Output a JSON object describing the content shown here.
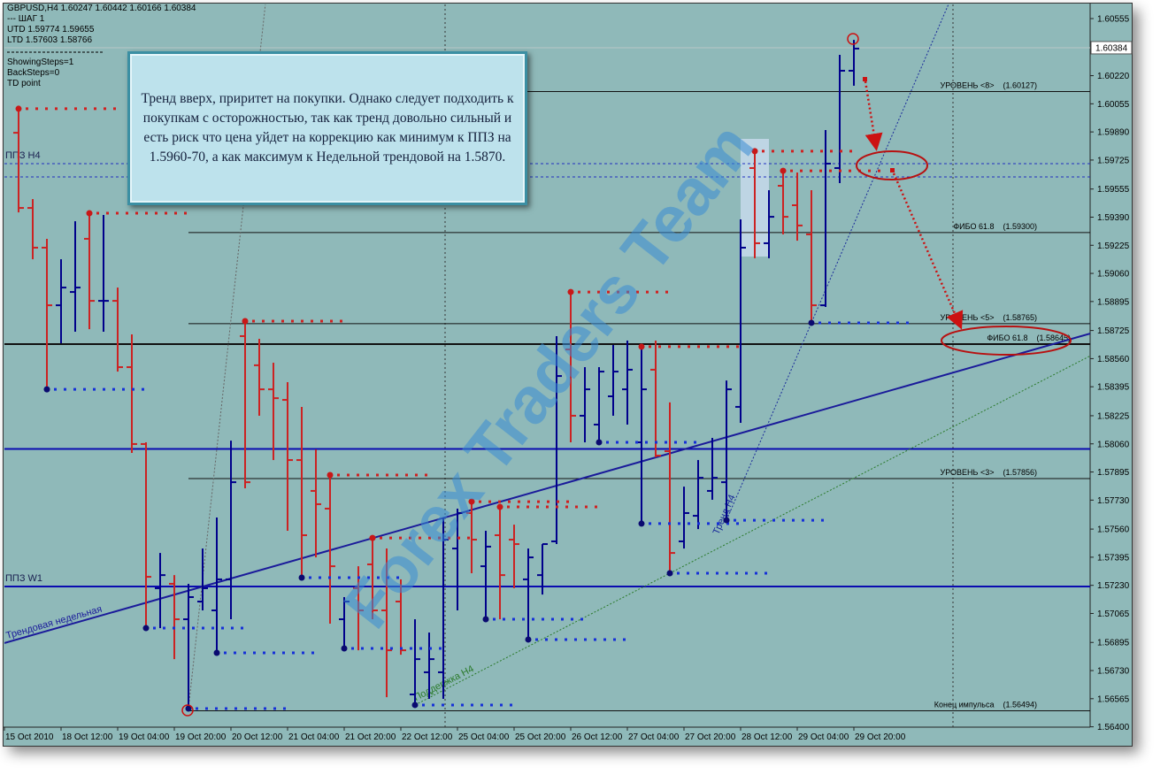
{
  "chart_data": {
    "type": "ohlc",
    "info_lines": [
      "GBPUSD,H4  1.60247 1.60442 1.60166 1.60384",
      "---  ШАГ 1",
      "UTD 1.59774  1.59655",
      "LTD 1.57603  1.58766"
    ],
    "settings_lines": [
      "ShowingSteps=1",
      "BackSteps=0",
      "TD point"
    ],
    "note": "Тренд вверх, приритет на покупки. Однако следует подходить к покупкам с осторожностью, так как тренд довольно сильный и есть риск что цена уйдет на коррекцию как минимум к ППЗ на 1.5960-70, а как максимум к Недельной трендовой на 1.5870.",
    "watermark": "Forex Traders Team",
    "categories": [
      "15 Oct 2010",
      null,
      null,
      null,
      "18 Oct 12:00",
      null,
      null,
      null,
      "19 Oct 04:00",
      null,
      null,
      null,
      "19 Oct 20:00",
      null,
      null,
      null,
      "20 Oct 12:00",
      null,
      null,
      null,
      "21 Oct 04:00",
      null,
      null,
      null,
      "21 Oct 20:00",
      null,
      null,
      null,
      "22 Oct 12:00",
      null,
      null,
      null,
      "25 Oct 04:00",
      null,
      null,
      null,
      "25 Oct 20:00",
      null,
      null,
      null,
      "26 Oct 12:00",
      null,
      null,
      null,
      "27 Oct 04:00",
      null,
      null,
      null,
      "27 Oct 20:00",
      null,
      null,
      null,
      "28 Oct 12:00",
      null,
      null,
      null,
      "29 Oct 04:00",
      null,
      null,
      null,
      "29 Oct 20:00"
    ],
    "open": [
      null,
      1.59885,
      1.59444,
      1.59211,
      1.58873,
      1.58951,
      1.59263,
      1.58899,
      1.58899,
      1.5851,
      1.58059,
      1.57213,
      1.57239,
      1.57031,
      1.57135,
      1.57083,
      1.57265,
      1.58692,
      1.58521,
      1.5838,
      1.58318,
      1.57965,
      1.57784,
      1.5768,
      1.57031,
      1.57213,
      1.57353,
      1.57083,
      1.57135,
      1.5659,
      1.5672,
      1.5672,
      1.57446,
      1.57654,
      1.57342,
      1.57524,
      1.57498,
      1.57265,
      1.5729,
      1.57488,
      1.58614,
      1.58225,
      1.58173,
      1.58339,
      1.5838,
      1.58069,
      1.58495,
      1.58017,
      1.57488,
      1.57638,
      1.57784,
      1.57835,
      1.58277,
      1.59678,
      1.59237,
      1.59574,
      1.5946,
      1.59289,
      1.58873,
      1.59678,
      1.60249
    ],
    "high": [
      null,
      1.60026,
      1.59496,
      1.59263,
      1.59143,
      1.59366,
      1.59413,
      1.59403,
      1.58977,
      1.58702,
      1.58069,
      1.5742,
      1.5729,
      1.57239,
      1.57446,
      1.57628,
      1.58079,
      1.5878,
      1.58676,
      1.58536,
      1.58422,
      1.58277,
      1.58027,
      1.57877,
      1.57161,
      1.57342,
      1.57508,
      1.57446,
      1.57265,
      1.57031,
      1.56953,
      1.57628,
      1.5768,
      1.57721,
      1.5755,
      1.5769,
      1.57586,
      1.57446,
      1.57472,
      1.58692,
      1.58951,
      1.5851,
      1.5851,
      1.5864,
      1.58666,
      1.5863,
      1.58666,
      1.58303,
      1.57809,
      1.57965,
      1.58095,
      1.58432,
      1.59377,
      1.59777,
      1.59548,
      1.59662,
      1.59652,
      1.59548,
      1.59901,
      1.60342,
      1.6043
    ],
    "low": [
      null,
      1.59418,
      1.59143,
      1.5838,
      1.5865,
      1.58718,
      1.58733,
      1.58718,
      1.58484,
      1.58007,
      1.56979,
      1.56979,
      1.56797,
      1.56507,
      1.57083,
      1.56834,
      1.57031,
      1.57799,
      1.58225,
      1.57965,
      1.5755,
      1.57275,
      1.57394,
      1.57005,
      1.5686,
      1.56849,
      1.57031,
      1.56574,
      1.56823,
      1.56528,
      1.56564,
      1.56564,
      1.57083,
      1.57301,
      1.57031,
      1.57031,
      1.57213,
      1.56912,
      1.57176,
      1.57472,
      1.58069,
      1.58069,
      1.58069,
      1.58225,
      1.58173,
      1.57592,
      1.57981,
      1.57301,
      1.57446,
      1.5756,
      1.57732,
      1.57612,
      1.58183,
      1.59149,
      1.59149,
      1.59289,
      1.59252,
      1.5877,
      1.58863,
      1.5959,
      1.60161
    ],
    "close": [
      null,
      1.59444,
      1.59211,
      1.58873,
      1.58977,
      1.58977,
      1.58899,
      1.58899,
      1.5851,
      1.58059,
      1.5728,
      1.5729,
      1.57031,
      1.57161,
      1.57213,
      1.57265,
      1.57835,
      1.57835,
      1.5838,
      1.58328,
      1.57965,
      1.57524,
      1.57706,
      1.57342,
      1.57135,
      1.57083,
      1.57083,
      1.56849,
      1.56849,
      1.56797,
      1.56797,
      1.57498,
      1.57654,
      1.57498,
      1.57457,
      1.5729,
      1.57472,
      1.57394,
      1.57472,
      1.58458,
      1.58225,
      1.5838,
      1.58484,
      1.58484,
      1.58495,
      1.5838,
      1.57991,
      1.5742,
      1.57654,
      1.57861,
      1.57861,
      1.5838,
      1.59211,
      1.59237,
      1.59392,
      1.59392,
      1.59341,
      1.58873,
      1.59704,
      1.60249,
      1.60379
    ],
    "up_color": "#00008b",
    "down_color": "#cc2222",
    "ylim": [
      1.56398,
      1.60638
    ],
    "yticks": [
      1.60555,
      {
        "value": 1.6022,
        "label": "1.60220"
      },
      1.60055,
      {
        "value": 1.5989,
        "label": "1.59890"
      },
      1.59725,
      1.59555,
      {
        "value": 1.5939,
        "label": "1.59390"
      },
      1.59225,
      {
        "value": 1.5906,
        "label": "1.59060"
      },
      1.58895,
      1.58725,
      {
        "value": 1.5856,
        "label": "1.58560"
      },
      1.58395,
      1.58225,
      {
        "value": 1.5806,
        "label": "1.58060"
      },
      1.57895,
      {
        "value": 1.5773,
        "label": "1.57730"
      },
      {
        "value": 1.5756,
        "label": "1.57560"
      },
      1.57395,
      {
        "value": 1.5723,
        "label": "1.57230"
      },
      1.57065,
      1.56895,
      {
        "value": 1.5673,
        "label": "1.56730"
      },
      1.56565,
      {
        "value": 1.564,
        "label": "1.56400"
      }
    ],
    "last_price": 1.60384,
    "levels": [
      {
        "name": "УРОВЕНЬ <8>",
        "value": 1.60127,
        "label": "(1.60127)"
      },
      {
        "name": "ФИБО 61.8",
        "value": 1.593,
        "label": "(1.59300)"
      },
      {
        "name": "УРОВЕНЬ <5>",
        "value": 1.58765,
        "label": "(1.58765)"
      },
      {
        "name": "ФИБО 61.8",
        "value": 1.58645,
        "label": "(1.58645)",
        "bold": true
      },
      {
        "name": "УРОВЕНЬ <3>",
        "value": 1.57856,
        "label": "(1.57856)"
      },
      {
        "name": "Конец импульса",
        "value": 1.56494,
        "label": "(1.56494)"
      }
    ],
    "hlines": [
      {
        "name": "ППЗ H4",
        "value": 1.59704,
        "style": "dashed"
      },
      {
        "value": 1.59626,
        "style": "dashed"
      },
      {
        "value": 1.5803,
        "style": "solid"
      },
      {
        "name": "ППЗ W1",
        "value": 1.57223,
        "style": "solid"
      }
    ],
    "trendlines": [
      {
        "name": "Трендовая недельная",
        "points": [
          {
            "x": 13,
            "y": 1.57199
          },
          {
            "x": 60,
            "y": 1.58312
          }
        ],
        "color": "#1a1a9a",
        "style": "solid",
        "extend": "both"
      },
      {
        "name": "Тренд H4",
        "points": [
          {
            "x": 51,
            "y": 1.57612
          },
          {
            "x": 57,
            "y": 1.5877
          }
        ],
        "color": "#1a2a9a",
        "style": "dotted",
        "extend": "right"
      },
      {
        "name": "Поддержка H4",
        "points": [
          {
            "x": 29,
            "y": 1.56528
          },
          {
            "x": 47,
            "y": 1.57301
          }
        ],
        "color": "#2a7a2a",
        "style": "dotted",
        "extend": "right"
      },
      {
        "points": [
          {
            "x": 13,
            "y": 1.56507
          },
          {
            "x": 18,
            "y": 1.60311
          }
        ],
        "color": "#666666",
        "style": "dotted",
        "extend": "right"
      }
    ],
    "td_highs": [
      1,
      6,
      17,
      23,
      26,
      33,
      35,
      40,
      45,
      53,
      55
    ],
    "td_lows": [
      3,
      10,
      13,
      15,
      21,
      24,
      29,
      34,
      37,
      42,
      45,
      47,
      51,
      57
    ]
  }
}
